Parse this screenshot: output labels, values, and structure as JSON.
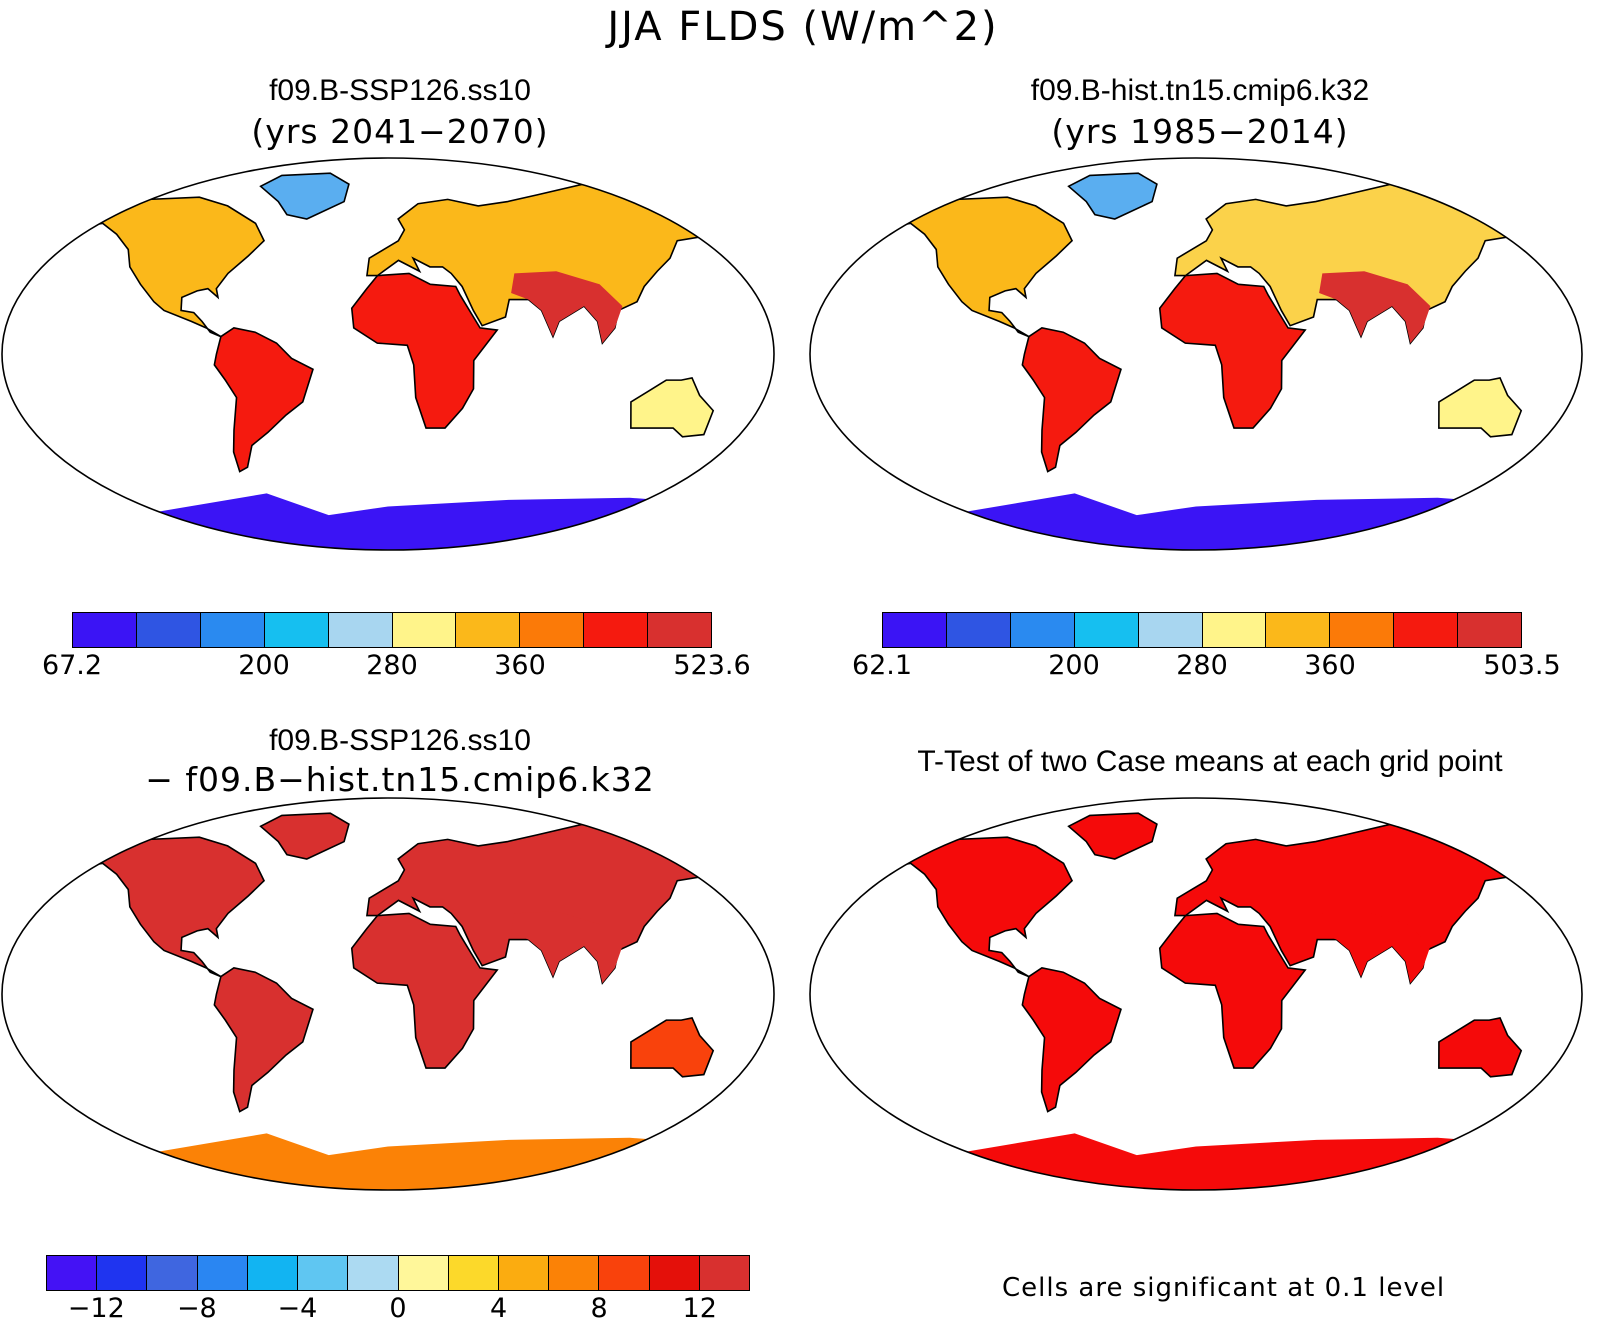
{
  "main_title": "JJA FLDS (W/m^2)",
  "panels": {
    "top_left": {
      "title": "f09.B-SSP126.ss10",
      "subtitle": "(yrs 2041−2070)"
    },
    "top_right": {
      "title": "f09.B-hist.tn15.cmip6.k32",
      "subtitle": "(yrs 1985−2014)"
    },
    "bottom_left": {
      "title": "f09.B-SSP126.ss10",
      "subtitle": "− f09.B−hist.tn15.cmip6.k32"
    },
    "bottom_right": {
      "title": "T-Test of two Case means at each grid point"
    }
  },
  "colorbars": {
    "top_left": {
      "colors": [
        "#3b14f5",
        "#2f55e3",
        "#2a8af0",
        "#16bff0",
        "#a8d6f0",
        "#fff48a",
        "#fbb81a",
        "#fb7a08",
        "#f51a0f",
        "#d8302f"
      ],
      "labels": [
        {
          "text": "67.2",
          "index": 0
        },
        {
          "text": "200",
          "index": 3
        },
        {
          "text": "280",
          "index": 5
        },
        {
          "text": "360",
          "index": 7
        },
        {
          "text": "523.6",
          "index": 10
        }
      ]
    },
    "top_right": {
      "colors": [
        "#3b14f5",
        "#2f55e3",
        "#2a8af0",
        "#16bff0",
        "#a8d6f0",
        "#fff48a",
        "#fbb81a",
        "#fb7a08",
        "#f51a0f",
        "#d8302f"
      ],
      "labels": [
        {
          "text": "62.1",
          "index": 0
        },
        {
          "text": "200",
          "index": 3
        },
        {
          "text": "280",
          "index": 5
        },
        {
          "text": "360",
          "index": 7
        },
        {
          "text": "503.5",
          "index": 10
        }
      ]
    },
    "bottom_left": {
      "colors": [
        "#4412f5",
        "#1f34f0",
        "#3f66e0",
        "#2a86f2",
        "#12b4f2",
        "#5fc6f2",
        "#acdaf2",
        "#fff79a",
        "#fcd92a",
        "#fbac10",
        "#fb8206",
        "#f9420c",
        "#e4100a",
        "#d8302f"
      ],
      "labels": [
        {
          "text": "−12",
          "index": 1
        },
        {
          "text": "−8",
          "index": 3
        },
        {
          "text": "−4",
          "index": 5
        },
        {
          "text": "0",
          "index": 7
        },
        {
          "text": "4",
          "index": 9
        },
        {
          "text": "8",
          "index": 11
        },
        {
          "text": "12",
          "index": 13
        }
      ]
    }
  },
  "significance_note": "Cells are significant at 0.1 level",
  "map_palette": {
    "panel_top_left": {
      "ocean": "#ffffff",
      "antarctica": "#3b14f5",
      "greenland": "#5aaef0",
      "north_america": "#fbb81a",
      "south_america": "#f51a0f",
      "africa": "#f51a0f",
      "europe_asia": "#fbb81a",
      "south_asia": "#d8302f",
      "australia": "#fff48a"
    },
    "panel_top_right": {
      "ocean": "#ffffff",
      "antarctica": "#3b14f5",
      "greenland": "#5aaef0",
      "north_america": "#fbb81a",
      "south_america": "#f51a0f",
      "africa": "#f51a0f",
      "europe_asia": "#fbd24a",
      "south_asia": "#d8302f",
      "australia": "#fff48a"
    },
    "panel_bottom_left": {
      "ocean": "#ffffff",
      "antarctica": "#fb8206",
      "greenland": "#d8302f",
      "north_america": "#d8302f",
      "south_america": "#d8302f",
      "africa": "#d8302f",
      "europe_asia": "#d8302f",
      "south_asia": "#d8302f",
      "australia": "#f9420c"
    },
    "panel_bottom_right": {
      "ocean": "#ffffff",
      "antarctica": "#f50a0a",
      "greenland": "#f50a0a",
      "north_america": "#f50a0a",
      "south_america": "#f50a0a",
      "africa": "#f50a0a",
      "europe_asia": "#f50a0a",
      "south_asia": "#f50a0a",
      "australia": "#f50a0a"
    }
  }
}
